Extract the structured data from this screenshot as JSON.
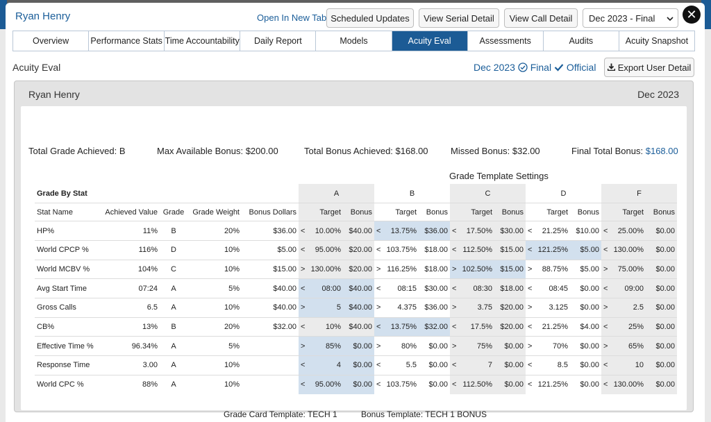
{
  "header": {
    "user_name": "Ryan Henry",
    "open_link": "Open In New Tab",
    "buttons": [
      "Scheduled Updates",
      "View Serial Detail",
      "View Call Detail"
    ],
    "period_select": "Dec 2023 - Final",
    "close": "✕"
  },
  "tabs": [
    "Overview",
    "Performance Stats",
    "Time Accountability",
    "Daily Report",
    "Models",
    "Acuity Eval",
    "Assessments",
    "Audits",
    "Acuity Snapshot"
  ],
  "active_tab": "Acuity Eval",
  "section": {
    "title": "Acuity Eval",
    "period": "Dec 2023",
    "final": "Final",
    "official": "Official",
    "export": "Export User Detail"
  },
  "card": {
    "name": "Ryan Henry",
    "date": "Dec 2023"
  },
  "summary": {
    "total_grade_label": "Total Grade Achieved:",
    "total_grade": "B",
    "max_bonus_label": "Max Available Bonus:",
    "max_bonus": "$200.00",
    "total_bonus_label": "Total Bonus Achieved:",
    "total_bonus": "$168.00",
    "missed_label": "Missed Bonus:",
    "missed": "$32.00",
    "final_label": "Final Total Bonus:",
    "final": "$168.00"
  },
  "grade_template_settings": "Grade Template Settings",
  "grade_by_stat": "Grade By Stat",
  "columns": {
    "stat_name": "Stat Name",
    "achieved": "Achieved Value",
    "grade": "Grade",
    "weight": "Grade Weight",
    "bonus_dollars": "Bonus Dollars",
    "target": "Target",
    "bonus": "Bonus"
  },
  "grade_letters": [
    "A",
    "B",
    "C",
    "D",
    "F"
  ],
  "rows": [
    {
      "stat": "HP%",
      "achieved": "11%",
      "grade": "B",
      "weight": "20%",
      "bonus_dollars": "$36.00",
      "cells": [
        [
          "<",
          "10.00%",
          "$40.00"
        ],
        [
          "<",
          "13.75%",
          "$36.00"
        ],
        [
          "<",
          "17.50%",
          "$30.00"
        ],
        [
          "<",
          "21.25%",
          "$10.00"
        ],
        [
          "<",
          "25.00%",
          "$0.00"
        ]
      ],
      "hl": 1
    },
    {
      "stat": "World CPCP %",
      "achieved": "116%",
      "grade": "D",
      "weight": "10%",
      "bonus_dollars": "$5.00",
      "cells": [
        [
          "<",
          "95.00%",
          "$20.00"
        ],
        [
          "<",
          "103.75%",
          "$18.00"
        ],
        [
          "<",
          "112.50%",
          "$15.00"
        ],
        [
          "<",
          "121.25%",
          "$5.00"
        ],
        [
          "<",
          "130.00%",
          "$0.00"
        ]
      ],
      "hl": 3
    },
    {
      "stat": "World MCBV %",
      "achieved": "104%",
      "grade": "C",
      "weight": "10%",
      "bonus_dollars": "$15.00",
      "cells": [
        [
          ">",
          "130.00%",
          "$20.00"
        ],
        [
          ">",
          "116.25%",
          "$18.00"
        ],
        [
          ">",
          "102.50%",
          "$15.00"
        ],
        [
          ">",
          "88.75%",
          "$5.00"
        ],
        [
          ">",
          "75.00%",
          "$0.00"
        ]
      ],
      "hl": 2
    },
    {
      "stat": "Avg Start Time",
      "achieved": "07:24",
      "grade": "A",
      "weight": "5%",
      "bonus_dollars": "$40.00",
      "cells": [
        [
          "<",
          "08:00",
          "$40.00"
        ],
        [
          "<",
          "08:15",
          "$30.00"
        ],
        [
          "<",
          "08:30",
          "$18.00"
        ],
        [
          "<",
          "08:45",
          "$0.00"
        ],
        [
          "<",
          "09:00",
          "$0.00"
        ]
      ],
      "hl": 0
    },
    {
      "stat": "Gross Calls",
      "achieved": "6.5",
      "grade": "A",
      "weight": "10%",
      "bonus_dollars": "$40.00",
      "cells": [
        [
          ">",
          "5",
          "$40.00"
        ],
        [
          ">",
          "4.375",
          "$36.00"
        ],
        [
          ">",
          "3.75",
          "$20.00"
        ],
        [
          ">",
          "3.125",
          "$0.00"
        ],
        [
          ">",
          "2.5",
          "$0.00"
        ]
      ],
      "hl": 0
    },
    {
      "stat": "CB%",
      "achieved": "13%",
      "grade": "B",
      "weight": "20%",
      "bonus_dollars": "$32.00",
      "cells": [
        [
          "<",
          "10%",
          "$40.00"
        ],
        [
          "<",
          "13.75%",
          "$32.00"
        ],
        [
          "<",
          "17.5%",
          "$20.00"
        ],
        [
          "<",
          "21.25%",
          "$4.00"
        ],
        [
          "<",
          "25%",
          "$0.00"
        ]
      ],
      "hl": 1
    },
    {
      "stat": "Effective Time %",
      "achieved": "96.34%",
      "grade": "A",
      "weight": "5%",
      "bonus_dollars": "",
      "cells": [
        [
          ">",
          "85%",
          "$0.00"
        ],
        [
          ">",
          "80%",
          "$0.00"
        ],
        [
          ">",
          "75%",
          "$0.00"
        ],
        [
          ">",
          "70%",
          "$0.00"
        ],
        [
          ">",
          "65%",
          "$0.00"
        ]
      ],
      "hl": 0
    },
    {
      "stat": "Response Time",
      "achieved": "3.00",
      "grade": "A",
      "weight": "10%",
      "bonus_dollars": "",
      "cells": [
        [
          "<",
          "4",
          "$0.00"
        ],
        [
          "<",
          "5.5",
          "$0.00"
        ],
        [
          "<",
          "7",
          "$0.00"
        ],
        [
          "<",
          "8.5",
          "$0.00"
        ],
        [
          "<",
          "10",
          "$0.00"
        ]
      ],
      "hl": 0
    },
    {
      "stat": "World CPC %",
      "achieved": "88%",
      "grade": "A",
      "weight": "10%",
      "bonus_dollars": "",
      "cells": [
        [
          "<",
          "95.00%",
          "$0.00"
        ],
        [
          "<",
          "103.75%",
          "$0.00"
        ],
        [
          "<",
          "112.50%",
          "$0.00"
        ],
        [
          "<",
          "121.25%",
          "$0.00"
        ],
        [
          "<",
          "130.00%",
          "$0.00"
        ]
      ],
      "hl": 0
    }
  ],
  "footer": {
    "grade_card_label": "Grade Card Template:",
    "grade_card": "TECH 1",
    "bonus_template_label": "Bonus Template:",
    "bonus_template": "TECH 1 BONUS"
  },
  "colors": {
    "accent": "#1c5b95",
    "link": "#1a5d99",
    "highlight": "#d2e0ee",
    "grade_bg": "#ebebeb"
  }
}
